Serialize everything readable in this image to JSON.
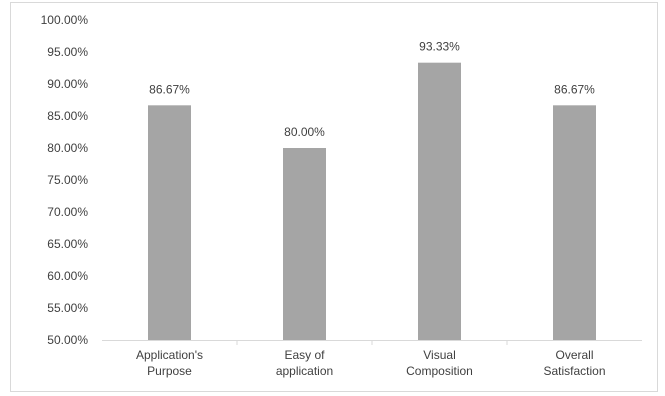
{
  "chart_data": {
    "type": "bar",
    "categories": [
      [
        "Application's",
        "Purpose"
      ],
      [
        "Easy of",
        "application"
      ],
      [
        "Visual",
        "Composition"
      ],
      [
        "Overall",
        "Satisfaction"
      ]
    ],
    "values": [
      86.67,
      80.0,
      93.33,
      86.67
    ],
    "value_labels": [
      "86.67%",
      "80.00%",
      "93.33%",
      "86.67%"
    ],
    "y_ticks": [
      50,
      55,
      60,
      65,
      70,
      75,
      80,
      85,
      90,
      95,
      100
    ],
    "y_tick_labels": [
      "50.00%",
      "55.00%",
      "60.00%",
      "65.00%",
      "70.00%",
      "75.00%",
      "80.00%",
      "85.00%",
      "90.00%",
      "95.00%",
      "100.00%"
    ],
    "ylim": [
      50,
      100
    ],
    "title": "",
    "xlabel": "",
    "ylabel": "",
    "grid": false,
    "legend": "none",
    "bar_color": "#a5a5a5",
    "axis_color": "#d9d9d9"
  }
}
